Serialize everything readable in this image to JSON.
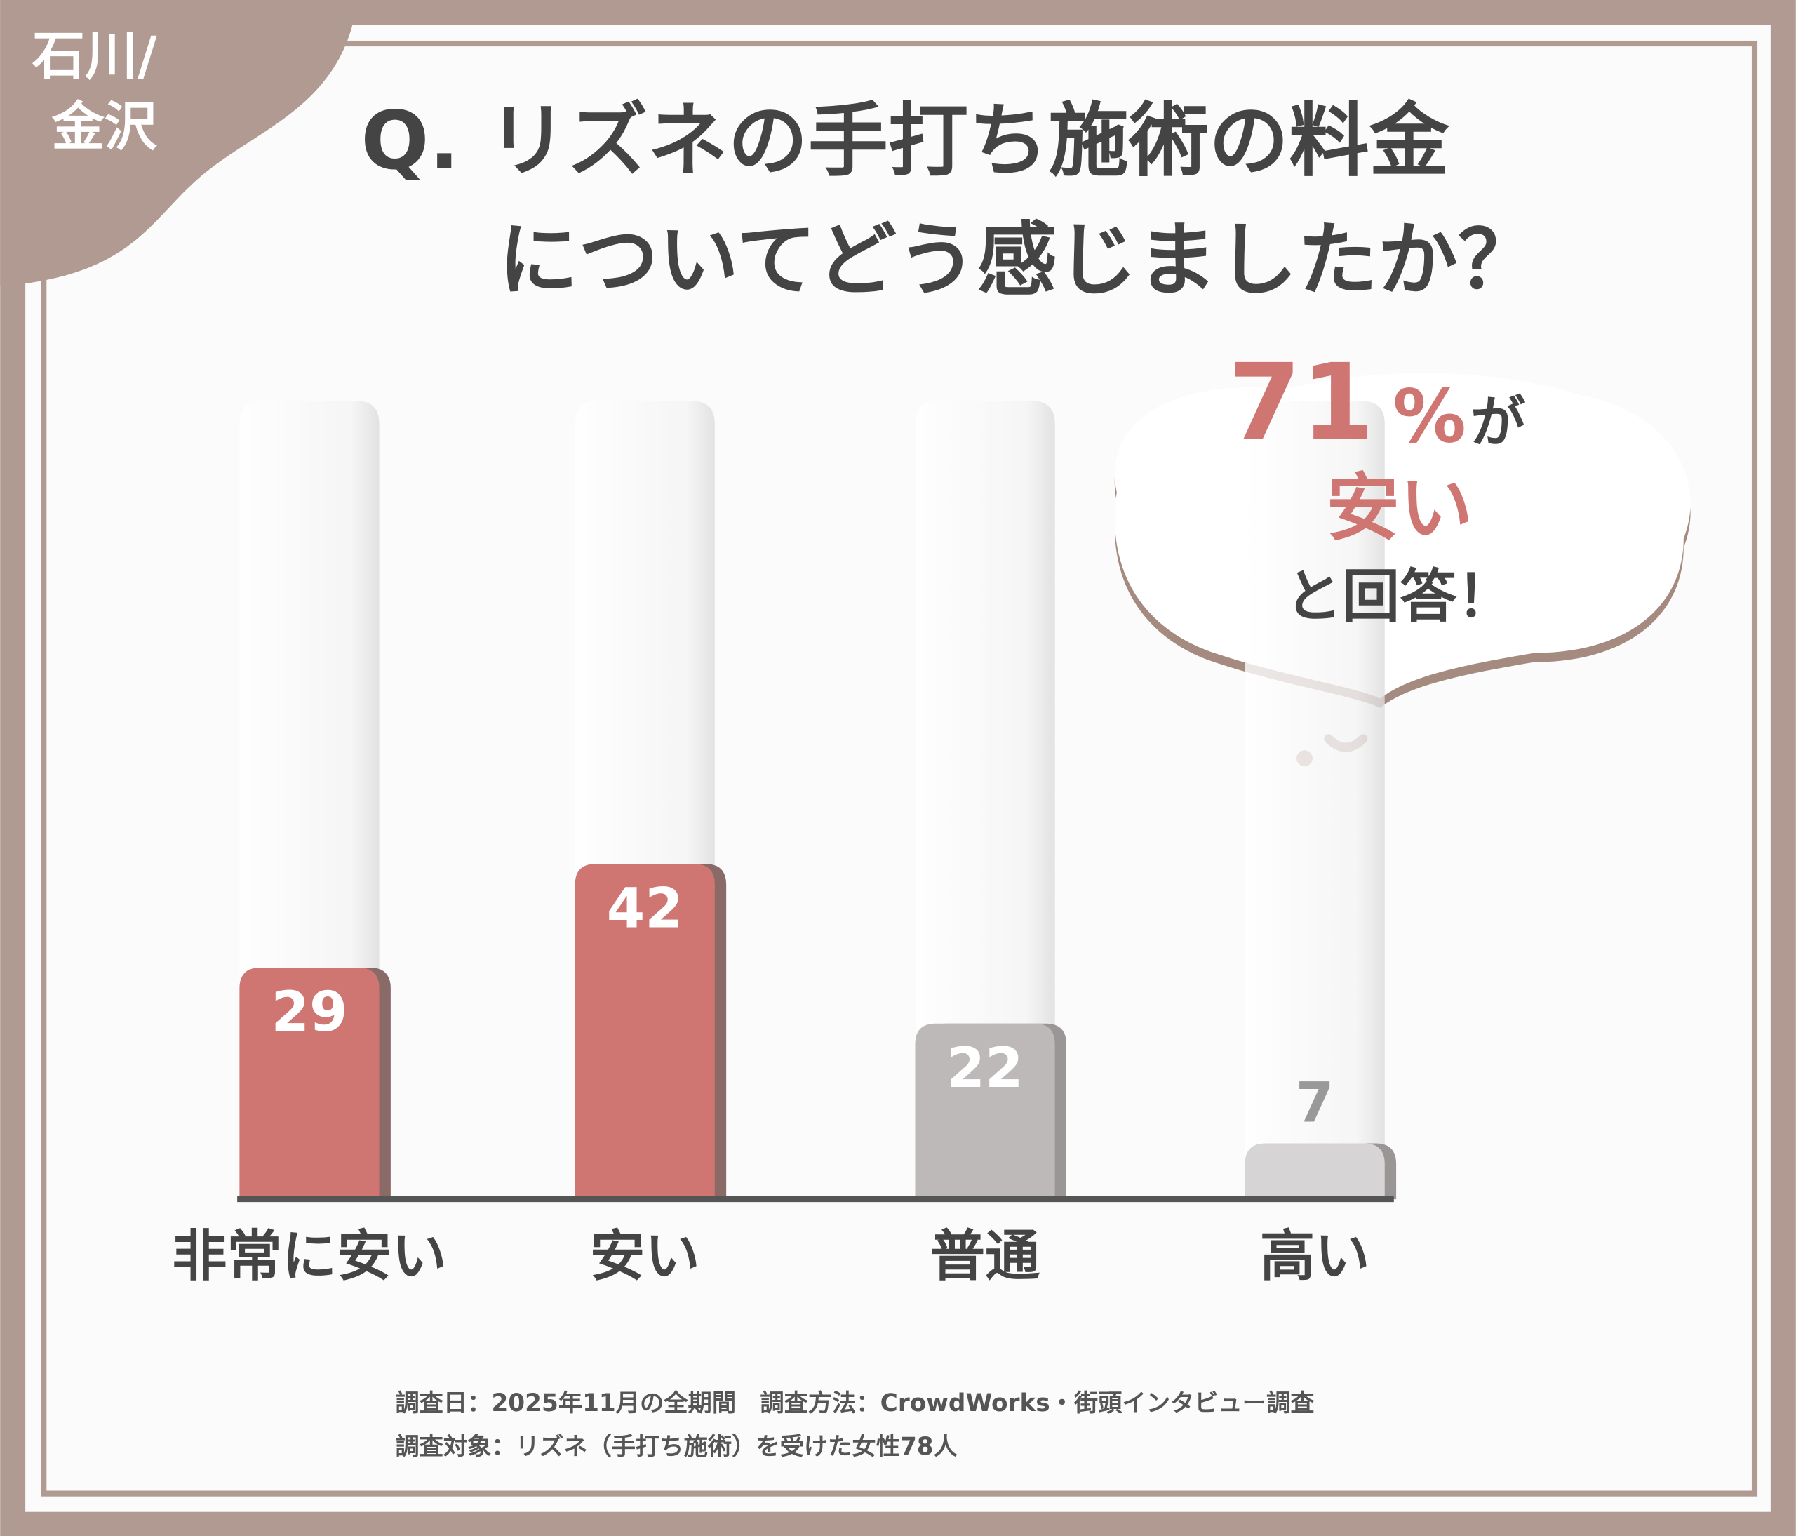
{
  "chart_data": {
    "type": "bar",
    "badge": [
      "石川/",
      "金沢"
    ],
    "title": [
      "Q. リズネの手打ち施術の料金",
      "についてどう感じましたか？"
    ],
    "categories": [
      "非常に安い",
      "安い",
      "普通",
      "高い"
    ],
    "values": [
      29,
      42,
      22,
      7
    ],
    "colors": [
      "#cf7672",
      "#cf7672",
      "#bdb9b8",
      "#d6d4d4"
    ],
    "ylim": [
      0,
      100
    ],
    "annotation": {
      "value": 71,
      "unit": "%",
      "lines": [
        "が",
        "安い",
        "と回答！"
      ]
    },
    "notes": [
      "調査日：2025年11月の全期間　調査方法：CrowdWorks・街頭インタビュー調査",
      "調査対象：リズネ（手打ち施術）を受けた女性78人"
    ]
  }
}
